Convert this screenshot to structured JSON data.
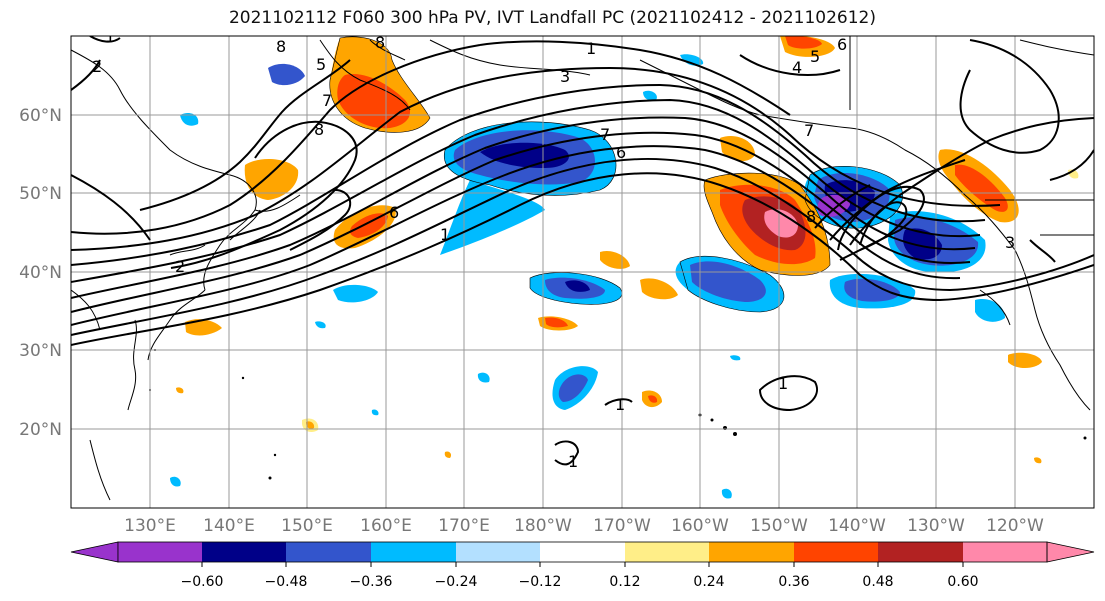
{
  "title": "2021102112 F060 300 hPa PV, IVT Landfall PC (2021102412 - 2021102612)",
  "lat_labels": [
    "60°N",
    "50°N",
    "40°N",
    "30°N",
    "20°N"
  ],
  "lon_labels": [
    "130°E",
    "140°E",
    "150°E",
    "160°E",
    "170°E",
    "180°W",
    "170°W",
    "160°W",
    "150°W",
    "140°W",
    "130°W",
    "120°W"
  ],
  "colorbar": {
    "colors": [
      "#9933cc",
      "#000088",
      "#3355cc",
      "#00bbff",
      "#b3e0ff",
      "#ffffff",
      "#ffee88",
      "#ffa500",
      "#ff4400",
      "#b22222",
      "#ff88aa"
    ],
    "tick_labels": [
      "−0.60",
      "−0.48",
      "−0.36",
      "−0.24",
      "−0.12",
      "0.12",
      "0.24",
      "0.36",
      "0.48",
      "0.60"
    ]
  },
  "contour_labels": [
    "1",
    "2",
    "8",
    "8",
    "5",
    "7",
    "8",
    "6",
    "1",
    "2",
    "3",
    "7",
    "6",
    "4",
    "5",
    "6",
    "7",
    "1",
    "8",
    "1",
    "3",
    "1",
    "1"
  ],
  "colors": {
    "grid": "#999999",
    "axis_text": "#777777"
  }
}
